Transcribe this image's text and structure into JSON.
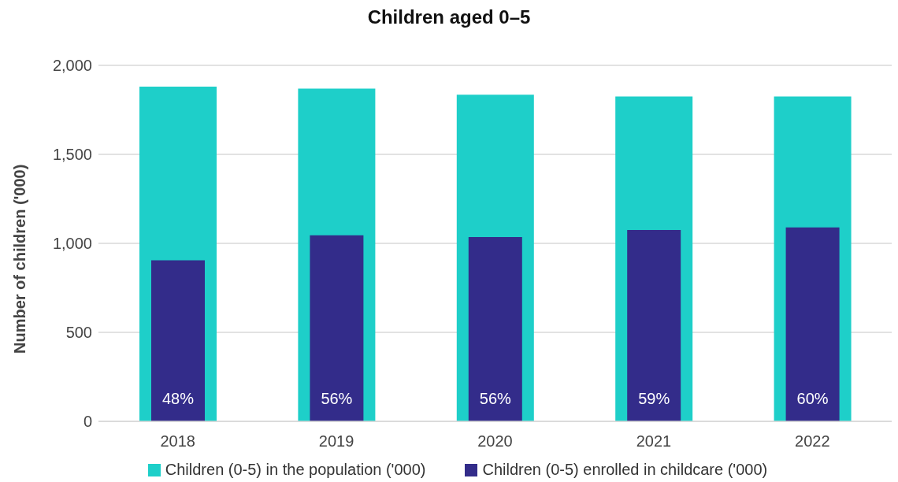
{
  "chart_data": {
    "type": "bar",
    "title": "Children aged 0–5",
    "ylabel": "Number of children ('000)",
    "categories": [
      "2018",
      "2019",
      "2020",
      "2021",
      "2022"
    ],
    "series": [
      {
        "name": "Children (0-5) in the population ('000)",
        "color": "#1ecfc9",
        "values": [
          1880,
          1870,
          1835,
          1825,
          1825
        ]
      },
      {
        "name": "Children (0-5) enrolled in childcare ('000)",
        "color": "#332c8a",
        "values": [
          905,
          1045,
          1035,
          1075,
          1090
        ]
      }
    ],
    "annotations": [
      "48%",
      "56%",
      "56%",
      "59%",
      "60%"
    ],
    "ylim": [
      0,
      2000
    ],
    "yticks": [
      0,
      500,
      {
        "value": 1000,
        "label": "1,000"
      },
      {
        "value": 1500,
        "label": "1,500"
      },
      {
        "value": 2000,
        "label": "2,000"
      }
    ],
    "grid": "y",
    "legend": "bottom"
  }
}
